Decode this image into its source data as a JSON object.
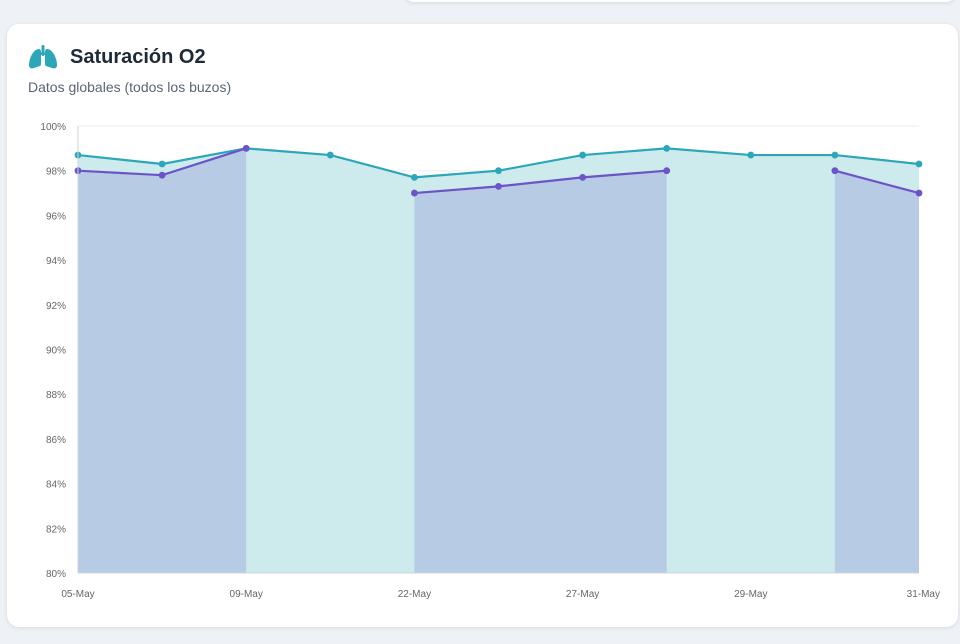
{
  "header": {
    "title": "Saturación O2",
    "subtitle": "Datos globales (todos los buzos)",
    "icon": "lungs-icon"
  },
  "colors": {
    "series_teal": "#2ba7b8",
    "series_purple": "#6b54c8",
    "fill_teal": "#cdeaed",
    "fill_blue": "#b7cbe5"
  },
  "chart_data": {
    "type": "area",
    "title": "",
    "xlabel": "",
    "ylabel": "",
    "ylim": [
      80,
      100
    ],
    "ytick_labels": [
      "100%",
      "98%",
      "96%",
      "94%",
      "92%",
      "90%",
      "88%",
      "86%",
      "84%",
      "82%",
      "80%"
    ],
    "yticks": [
      100,
      98,
      96,
      94,
      92,
      90,
      88,
      86,
      84,
      82,
      80
    ],
    "x_point_count": 11,
    "xtick_labels": [
      "05-May",
      "09-May",
      "22-May",
      "27-May",
      "29-May",
      "31-May"
    ],
    "xtick_indices": [
      0,
      2,
      4,
      6,
      8,
      10
    ],
    "grid": true,
    "legend": "none",
    "series": [
      {
        "values": [
          98.7,
          98.3,
          99.0,
          98.7,
          97.7,
          98.0,
          98.7,
          99.0,
          98.7,
          98.7,
          98.3
        ]
      },
      {
        "values": [
          98.0,
          97.8,
          99.0,
          null,
          97.0,
          97.3,
          97.7,
          98.0,
          null,
          98.0,
          97.0
        ]
      }
    ]
  }
}
